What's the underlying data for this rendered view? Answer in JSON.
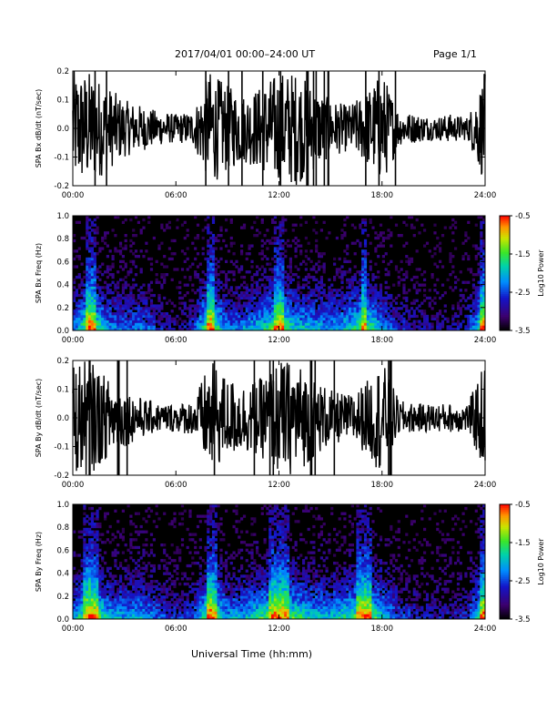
{
  "header": {
    "title": "2017/04/01   00:00–24:00 UT",
    "page": "Page 1/1"
  },
  "chart_data": [
    {
      "type": "line",
      "panel": "Bx waveform",
      "ylabel": "SPA Bx dB/dt (nT/sec)",
      "xlim": [
        0,
        24
      ],
      "ylim": [
        -0.2,
        0.2
      ],
      "x_ticks": [
        "00:00",
        "06:00",
        "12:00",
        "18:00",
        "24:00"
      ],
      "y_ticks": [
        "-0.2",
        "-0.1",
        "0.0",
        "0.1",
        "0.2"
      ],
      "x_hours": [
        0,
        1,
        2,
        3,
        4,
        5,
        6,
        7,
        8,
        9,
        10,
        11,
        12,
        13,
        14,
        15,
        16,
        17,
        18,
        19,
        20,
        21,
        22,
        23,
        24
      ],
      "amplitude": [
        0.2,
        0.2,
        0.15,
        0.1,
        0.08,
        0.06,
        0.05,
        0.06,
        0.2,
        0.15,
        0.12,
        0.15,
        0.2,
        0.2,
        0.15,
        0.1,
        0.08,
        0.12,
        0.2,
        0.06,
        0.05,
        0.04,
        0.05,
        0.04,
        0.2
      ]
    },
    {
      "type": "heatmap",
      "panel": "Bx spectrogram",
      "ylabel": "SPA Bx Freq (Hz)",
      "xlim": [
        0,
        24
      ],
      "ylim": [
        0,
        1.0
      ],
      "x_ticks": [
        "00:00",
        "06:00",
        "12:00",
        "18:00",
        "24:00"
      ],
      "y_ticks": [
        "0.0",
        "0.2",
        "0.4",
        "0.6",
        "0.8",
        "1.0"
      ],
      "colorbar": {
        "label": "Log10 Power",
        "range": [
          -3.5,
          -0.5
        ],
        "ticks": [
          "-0.5",
          "-1.5",
          "-2.5",
          "-3.5"
        ]
      },
      "activity_hours": [
        0,
        1,
        2,
        3,
        4,
        5,
        6,
        7,
        8,
        9,
        10,
        11,
        12,
        13,
        14,
        15,
        16,
        17,
        18,
        19,
        20,
        21,
        22,
        23,
        24
      ],
      "activity": [
        0.4,
        0.9,
        0.5,
        0.4,
        0.45,
        0.3,
        0.2,
        0.3,
        0.9,
        0.4,
        0.5,
        0.6,
        0.8,
        0.6,
        0.55,
        0.5,
        0.6,
        0.8,
        0.5,
        0.3,
        0.25,
        0.2,
        0.2,
        0.3,
        0.9
      ]
    },
    {
      "type": "line",
      "panel": "By waveform",
      "ylabel": "SPA By dB/dt (nT/sec)",
      "xlim": [
        0,
        24
      ],
      "ylim": [
        -0.2,
        0.2
      ],
      "x_ticks": [
        "00:00",
        "06:00",
        "12:00",
        "18:00",
        "24:00"
      ],
      "y_ticks": [
        "-0.2",
        "-0.1",
        "0.0",
        "0.1",
        "0.2"
      ],
      "x_hours": [
        0,
        1,
        2,
        3,
        4,
        5,
        6,
        7,
        8,
        9,
        10,
        11,
        12,
        13,
        14,
        15,
        16,
        17,
        18,
        19,
        20,
        21,
        22,
        23,
        24
      ],
      "amplitude": [
        0.2,
        0.2,
        0.14,
        0.1,
        0.07,
        0.05,
        0.05,
        0.06,
        0.2,
        0.14,
        0.12,
        0.14,
        0.2,
        0.2,
        0.14,
        0.1,
        0.08,
        0.12,
        0.2,
        0.06,
        0.05,
        0.05,
        0.05,
        0.05,
        0.2
      ]
    },
    {
      "type": "heatmap",
      "panel": "By spectrogram",
      "ylabel": "SPA By Freq (Hz)",
      "xlabel": "Universal Time (hh:mm)",
      "xlim": [
        0,
        24
      ],
      "ylim": [
        0,
        1.0
      ],
      "x_ticks": [
        "00:00",
        "06:00",
        "12:00",
        "18:00",
        "24:00"
      ],
      "y_ticks": [
        "0.0",
        "0.2",
        "0.4",
        "0.6",
        "0.8",
        "1.0"
      ],
      "colorbar": {
        "label": "Log10 Power",
        "range": [
          -3.5,
          -0.5
        ],
        "ticks": [
          "-0.5",
          "-1.5",
          "-2.5",
          "-3.5"
        ]
      },
      "activity_hours": [
        0,
        1,
        2,
        3,
        4,
        5,
        6,
        7,
        8,
        9,
        10,
        11,
        12,
        13,
        14,
        15,
        16,
        17,
        18,
        19,
        20,
        21,
        22,
        23,
        24
      ],
      "activity": [
        0.45,
        0.9,
        0.6,
        0.5,
        0.55,
        0.4,
        0.3,
        0.35,
        0.9,
        0.5,
        0.55,
        0.7,
        0.85,
        0.7,
        0.6,
        0.55,
        0.65,
        0.85,
        0.6,
        0.35,
        0.3,
        0.25,
        0.25,
        0.3,
        0.9
      ]
    }
  ]
}
